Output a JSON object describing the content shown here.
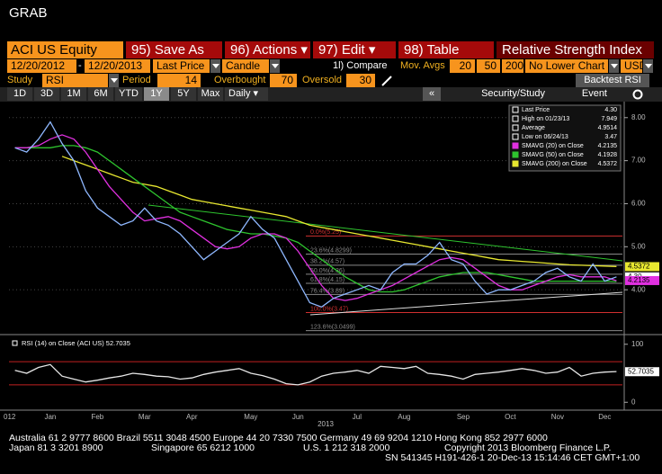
{
  "header": {
    "title": "GRAB"
  },
  "toolbar": {
    "security": "ACI US Equity",
    "buttons": [
      "95) Save As",
      "96) Actions ▾",
      "97) Edit ▾",
      "98) Table"
    ],
    "study_title": "Relative Strength Index"
  },
  "range_row": {
    "start": "12/20/2012",
    "sep": "-",
    "end": "12/20/2013",
    "field": "Last Price",
    "style": "Candle",
    "compare": "1l) Compare",
    "mov_avgs_label": "Mov. Avgs",
    "mov_avgs": [
      "20",
      "50",
      "200"
    ],
    "lower": "No Lower Chart",
    "currency": "USD"
  },
  "study_row": {
    "study_label": "Study",
    "study": "RSI",
    "period_label": "Period",
    "period": "14",
    "overbought_label": "Overbought",
    "overbought": 70,
    "oversold_label": "Oversold",
    "oversold": 30,
    "backtest": "Backtest RSI"
  },
  "period_row": {
    "ranges": [
      "1D",
      "3D",
      "1M",
      "6M",
      "YTD",
      "1Y",
      "5Y",
      "Max"
    ],
    "frequency": "Daily ▾",
    "collapse": "«",
    "security_study": "Security/Study",
    "event": "Event"
  },
  "footer": {
    "lines": [
      [
        "Australia 61 2 9777 8600 Brazil 5511 3048 4500 Europe 44 20 7330 7500 Germany 49 69 9204 1210 Hong Kong 852 2977 6000"
      ],
      [
        "Japan 81 3 3201 8900",
        "Singapore 65 6212 1000",
        "U.S. 1 212 318 2000",
        "Copyright 2013 Bloomberg Finance L.P."
      ],
      [
        "SN 541345 H191-426-1 20-Dec-13 15:14:46 CET  GMT+1:00"
      ]
    ]
  },
  "chart_data": [
    {
      "type": "line",
      "categories": [
        "012",
        null,
        null,
        "Jan",
        null,
        null,
        null,
        "Feb",
        null,
        null,
        null,
        "Mar",
        null,
        null,
        null,
        "Apr",
        null,
        null,
        null,
        null,
        "May",
        null,
        null,
        null,
        "Jun",
        null,
        null,
        null,
        null,
        "Jul",
        null,
        null,
        null,
        "Aug",
        null,
        null,
        null,
        null,
        "Sep",
        null,
        null,
        null,
        "Oct",
        null,
        null,
        null,
        "Nov",
        null,
        null,
        null,
        "Dec",
        null
      ],
      "year_label": "2013",
      "series": [
        {
          "name": "SMAVG (200) on Close",
          "color": "#e8e830",
          "values": [
            null,
            null,
            null,
            null,
            7.1,
            7.0,
            6.9,
            6.8,
            6.7,
            6.6,
            6.5,
            6.45,
            6.4,
            6.3,
            6.2,
            6.1,
            6.05,
            6.0,
            5.95,
            5.9,
            5.85,
            5.8,
            5.75,
            5.7,
            5.6,
            5.5,
            5.45,
            5.4,
            5.35,
            5.3,
            5.25,
            5.2,
            5.15,
            5.1,
            5.05,
            5.0,
            4.95,
            4.9,
            4.85,
            4.8,
            4.75,
            4.7,
            4.68,
            4.66,
            4.64,
            4.62,
            4.6,
            4.58,
            4.57,
            4.56,
            4.55,
            4.54
          ]
        },
        {
          "name": "SMAVG (50) on Close",
          "color": "#2ec42e",
          "values": [
            7.3,
            7.3,
            7.3,
            7.3,
            7.35,
            7.35,
            7.3,
            7.2,
            7.0,
            6.8,
            6.6,
            6.4,
            6.2,
            6.0,
            5.8,
            5.7,
            5.6,
            5.5,
            5.4,
            5.35,
            5.3,
            5.3,
            5.25,
            5.2,
            5.1,
            4.9,
            4.7,
            4.5,
            4.3,
            4.15,
            4.0,
            3.95,
            3.95,
            4.0,
            4.1,
            4.2,
            4.3,
            4.35,
            4.4,
            4.4,
            4.4,
            4.35,
            4.3,
            4.25,
            4.2,
            4.2,
            4.2,
            4.2,
            4.2,
            4.2,
            4.2,
            4.19
          ]
        },
        {
          "name": "SMAVG (20) on Close",
          "color": "#e030e0",
          "values": [
            7.3,
            7.3,
            7.35,
            7.5,
            7.6,
            7.5,
            7.2,
            6.8,
            6.4,
            6.1,
            5.8,
            5.6,
            5.65,
            5.7,
            5.6,
            5.4,
            5.2,
            5.0,
            4.95,
            5.0,
            5.2,
            5.3,
            5.3,
            5.2,
            4.9,
            4.5,
            4.1,
            3.8,
            3.75,
            3.8,
            3.9,
            4.0,
            4.1,
            4.25,
            4.4,
            4.55,
            4.7,
            4.75,
            4.7,
            4.5,
            4.3,
            4.1,
            4.0,
            4.0,
            4.1,
            4.2,
            4.3,
            4.35,
            4.3,
            4.3,
            4.3,
            4.21
          ]
        },
        {
          "name": "Last Price",
          "color": "#8fb8ff",
          "values": [
            7.3,
            7.2,
            7.5,
            7.9,
            7.4,
            7.0,
            6.3,
            5.9,
            5.7,
            5.5,
            5.6,
            5.9,
            5.6,
            5.5,
            5.3,
            5.0,
            4.7,
            4.9,
            5.1,
            5.3,
            5.7,
            5.4,
            5.2,
            4.7,
            4.2,
            3.7,
            3.6,
            3.8,
            3.9,
            4.0,
            4.1,
            4.0,
            4.4,
            4.6,
            4.6,
            4.8,
            5.1,
            4.7,
            4.6,
            4.2,
            3.9,
            4.0,
            4.0,
            4.1,
            4.2,
            4.4,
            4.5,
            4.3,
            4.2,
            4.6,
            4.2,
            4.3
          ]
        }
      ],
      "ylim": [
        3.0,
        8.33
      ],
      "yticks": [
        {
          "value": 4,
          "label": "4.00"
        },
        {
          "value": 5,
          "label": "5.00"
        },
        {
          "value": 6,
          "label": "6.00"
        },
        {
          "value": 7,
          "label": "7.00"
        },
        {
          "value": 8,
          "label": "8.00"
        }
      ],
      "grid": true,
      "annotations": [
        {
          "label": "0.0%(5.25)",
          "value": 5.25,
          "color": "#d03030"
        },
        {
          "label": "23.6%(4.8299)",
          "value": 4.8299,
          "color": "#888888"
        },
        {
          "label": "38.2%(4.57)",
          "value": 4.57,
          "color": "#888888"
        },
        {
          "label": "50.0%(4.36)",
          "value": 4.36,
          "color": "#888888"
        },
        {
          "label": "61.8%(4.15)",
          "value": 4.15,
          "color": "#888888"
        },
        {
          "label": "76.4%(3.89)",
          "value": 3.89,
          "color": "#888888"
        },
        {
          "label": "100.0%(3.47)",
          "value": 3.47,
          "color": "#d03030"
        },
        {
          "label": "123.6%(3.0499)",
          "value": 3.0499,
          "color": "#888888"
        }
      ],
      "markers": [
        {
          "label": "4.5372",
          "value": 4.5372,
          "color": "#e8e830"
        },
        {
          "label": "4.30",
          "value": 4.3,
          "color": "#ffffff"
        },
        {
          "label": "4.2135",
          "value": 4.2135,
          "color": "#e030e0"
        }
      ],
      "legend": [
        {
          "label": "Last Price",
          "value": "4.30",
          "color": "#ffffff"
        },
        {
          "label": "High on 01/23/13",
          "value": "7.949",
          "color": "#ffffff"
        },
        {
          "label": "Average",
          "value": "4.9514",
          "color": "#ffffff"
        },
        {
          "label": "Low on 06/24/13",
          "value": "3.47",
          "color": "#ffffff"
        },
        {
          "label": "SMAVG (20) on Close",
          "value": "4.2135",
          "color": "#e030e0"
        },
        {
          "label": "SMAVG (50) on Close",
          "value": "4.1928",
          "color": "#2ec42e"
        },
        {
          "label": "SMAVG (200) on Close",
          "value": "4.5372",
          "color": "#e8e830"
        }
      ]
    },
    {
      "type": "line",
      "title": "RSI (14) on Close (ACI US) 52.7035",
      "series": [
        {
          "color": "#e6e6e6",
          "values": [
            55,
            50,
            60,
            65,
            45,
            40,
            35,
            38,
            42,
            45,
            50,
            48,
            45,
            44,
            40,
            42,
            48,
            52,
            55,
            58,
            50,
            46,
            40,
            32,
            30,
            35,
            45,
            50,
            52,
            55,
            50,
            62,
            60,
            58,
            62,
            50,
            48,
            45,
            40,
            48,
            50,
            52,
            55,
            58,
            55,
            50,
            52,
            60,
            45,
            50,
            52,
            53
          ]
        }
      ],
      "ylim": [
        -12,
        112
      ],
      "yticks": [
        0,
        100
      ],
      "markers": [
        {
          "label": "52.7035",
          "value": 52.7035,
          "color": "#ffffff"
        }
      ]
    }
  ]
}
